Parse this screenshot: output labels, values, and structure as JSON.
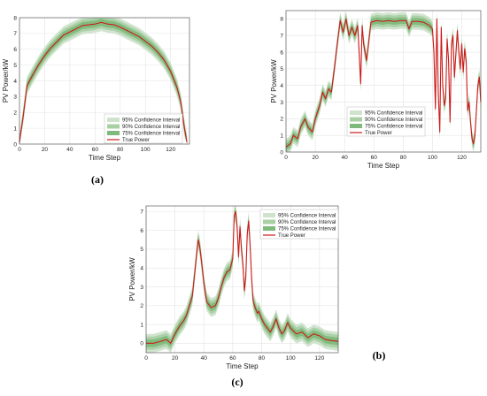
{
  "colors": {
    "ci95": "#cfe3cc",
    "ci90": "#a9d0a5",
    "ci75": "#7fb97b",
    "truePower": "#cc1a1a",
    "grid": "#e4e4e4",
    "axis": "#444444"
  },
  "chart_data": [
    {
      "type": "line",
      "panel_label": "(a)",
      "xlabel": "Time Step",
      "ylabel": "PV Power/kW",
      "xlim": [
        0,
        135
      ],
      "ylim": [
        0,
        8
      ],
      "xticks": [
        0,
        20,
        40,
        60,
        80,
        100,
        120
      ],
      "yticks": [
        0,
        1,
        2,
        3,
        4,
        5,
        6,
        7,
        8
      ],
      "legend_position": "bottom-right",
      "legend": [
        "95% Confidence Interval",
        "90% Confidence Interval",
        "75% Confidence Interval",
        "True Power"
      ],
      "bands": [
        0.55,
        0.38,
        0.22
      ],
      "series": [
        {
          "name": "True Power",
          "x": [
            0,
            3,
            6,
            10,
            15,
            20,
            25,
            30,
            35,
            40,
            45,
            50,
            55,
            60,
            65,
            70,
            75,
            80,
            85,
            90,
            95,
            100,
            105,
            110,
            115,
            120,
            125,
            128,
            131,
            133
          ],
          "values": [
            0.1,
            1.8,
            3.7,
            4.3,
            5.0,
            5.6,
            6.1,
            6.5,
            6.9,
            7.1,
            7.3,
            7.5,
            7.55,
            7.6,
            7.7,
            7.6,
            7.55,
            7.4,
            7.2,
            7.0,
            6.8,
            6.5,
            6.2,
            5.8,
            5.3,
            4.6,
            3.6,
            2.7,
            1.0,
            0.1
          ]
        }
      ]
    },
    {
      "type": "line",
      "panel_label": "(b)",
      "xlabel": "Time Step",
      "ylabel": "PV Power/kW",
      "xlim": [
        0,
        133
      ],
      "ylim": [
        0,
        8.5
      ],
      "xticks": [
        0,
        20,
        40,
        60,
        80,
        100,
        120
      ],
      "yticks": [
        0,
        1,
        2,
        3,
        4,
        5,
        6,
        7,
        8
      ],
      "legend_position": "top-right",
      "legend": [
        "95% Confidence Interval",
        "90% Confidence Interval",
        "75% Confidence Interval",
        "True Power"
      ],
      "bands": [
        0.5,
        0.35,
        0.2
      ],
      "series": [
        {
          "name": "True Power",
          "x": [
            0,
            3,
            5,
            8,
            10,
            13,
            15,
            18,
            20,
            23,
            25,
            27,
            29,
            31,
            33,
            35,
            37,
            39,
            41,
            43,
            45,
            47,
            49,
            51,
            52,
            53,
            55,
            58,
            62,
            66,
            70,
            74,
            78,
            82,
            84,
            86,
            90,
            94,
            98,
            100,
            101,
            102,
            103,
            104,
            105,
            106,
            107,
            108,
            109,
            110,
            111,
            112,
            113,
            114,
            115,
            117,
            118,
            119,
            120,
            121,
            122,
            123,
            124,
            125,
            126,
            127,
            128,
            129,
            130,
            131,
            132,
            133
          ],
          "values": [
            0.3,
            0.5,
            1.0,
            0.8,
            1.5,
            2.0,
            1.5,
            1.2,
            2.0,
            2.8,
            3.6,
            3.2,
            3.8,
            3.6,
            5.0,
            6.5,
            7.9,
            7.2,
            8.0,
            7.0,
            7.5,
            7.0,
            7.6,
            4.1,
            7.6,
            6.5,
            5.5,
            7.8,
            7.9,
            7.85,
            7.9,
            7.85,
            7.9,
            7.9,
            7.4,
            7.85,
            7.85,
            7.8,
            7.6,
            7.4,
            6.0,
            2.6,
            8.0,
            3.5,
            1.2,
            7.5,
            4.0,
            2.8,
            3.2,
            6.8,
            5.5,
            1.8,
            6.5,
            7.0,
            4.5,
            7.3,
            6.0,
            5.0,
            6.5,
            4.8,
            6.2,
            5.5,
            2.5,
            3.0,
            1.8,
            0.8,
            0.5,
            1.0,
            2.5,
            4.0,
            4.5,
            3.0
          ]
        }
      ]
    },
    {
      "type": "line",
      "panel_label": "(c)",
      "xlabel": "Time Step",
      "ylabel": "PV Power/kW",
      "xlim": [
        0,
        133
      ],
      "ylim": [
        -0.5,
        7.3
      ],
      "xticks": [
        0,
        20,
        40,
        60,
        80,
        100,
        120
      ],
      "yticks": [
        0,
        1,
        2,
        3,
        4,
        5,
        6,
        7
      ],
      "legend_position": "top-right",
      "legend": [
        "95% Confidence Interval",
        "90% Confidence Interval",
        "75% Confidence Interval",
        "True Power"
      ],
      "bands": [
        0.5,
        0.35,
        0.2
      ],
      "series": [
        {
          "name": "True Power",
          "x": [
            0,
            5,
            10,
            14,
            17,
            20,
            23,
            26,
            28,
            30,
            32,
            34,
            36,
            37,
            38,
            40,
            42,
            45,
            48,
            50,
            52,
            54,
            56,
            58,
            60,
            61,
            62,
            63,
            64,
            65,
            66,
            67,
            68,
            69,
            70,
            71,
            72,
            73,
            74,
            75,
            76,
            77,
            78,
            80,
            82,
            84,
            86,
            88,
            90,
            92,
            94,
            96,
            98,
            100,
            104,
            108,
            112,
            116,
            120,
            124,
            128,
            133
          ],
          "values": [
            0,
            0,
            0.1,
            0.2,
            0.0,
            0.5,
            0.9,
            1.2,
            1.5,
            2.0,
            2.5,
            4.0,
            5.5,
            5.2,
            4.6,
            3.2,
            2.2,
            1.9,
            2.0,
            2.4,
            3.0,
            3.5,
            3.8,
            3.9,
            4.5,
            6.8,
            7.0,
            6.2,
            4.6,
            6.2,
            5.0,
            4.2,
            2.8,
            3.5,
            5.8,
            6.5,
            5.2,
            3.5,
            2.3,
            2.0,
            1.8,
            1.6,
            1.7,
            1.3,
            1.0,
            0.8,
            0.6,
            0.9,
            1.3,
            0.8,
            0.5,
            0.7,
            1.1,
            0.8,
            0.5,
            0.6,
            0.3,
            0.5,
            0.4,
            0.2,
            0.15,
            0.1
          ]
        }
      ]
    }
  ]
}
